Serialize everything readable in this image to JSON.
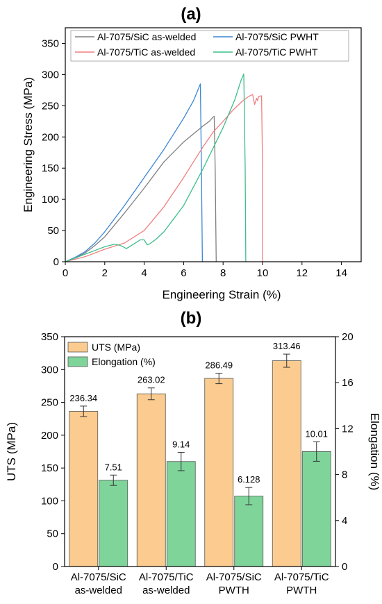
{
  "chart_data": [
    {
      "panel": "(a)",
      "type": "line",
      "xlabel": "Engineering Strain (%)",
      "ylabel": "Engineering Stress (MPa)",
      "xlim": [
        0,
        15
      ],
      "ylim": [
        0,
        375
      ],
      "xticks": [
        0,
        2,
        4,
        6,
        8,
        10,
        12,
        14
      ],
      "yticks": [
        0,
        50,
        100,
        150,
        200,
        250,
        300,
        350
      ],
      "legend_position": "top",
      "series": [
        {
          "name": "Al-7075/SiC as-welded",
          "color": "#7f7f7f",
          "x": [
            0,
            0.5,
            1,
            1.5,
            2,
            3,
            4,
            5,
            6,
            6.5,
            7,
            7.3,
            7.5,
            7.55,
            7.6,
            7.65
          ],
          "y": [
            0,
            6,
            14,
            26,
            40,
            78,
            118,
            160,
            192,
            205,
            218,
            225,
            232,
            233,
            150,
            0
          ]
        },
        {
          "name": "Al-7075/SiC PWHT",
          "color": "#3a86d4",
          "x": [
            0,
            0.5,
            1,
            1.5,
            2,
            3,
            4,
            5,
            6,
            6.5,
            6.85,
            6.9,
            6.95
          ],
          "y": [
            0,
            7,
            16,
            30,
            48,
            90,
            135,
            180,
            230,
            258,
            285,
            150,
            0
          ]
        },
        {
          "name": "Al-7075/TiC as-welded",
          "color": "#f07f7f",
          "x": [
            0,
            1,
            2,
            3,
            4,
            5,
            6,
            6.5,
            7,
            7.5,
            8,
            8.5,
            9,
            9.3,
            9.5,
            9.6,
            9.7,
            9.75,
            9.8,
            9.95,
            10.0,
            10.0
          ],
          "y": [
            0,
            8,
            20,
            30,
            50,
            88,
            135,
            160,
            185,
            208,
            225,
            243,
            258,
            265,
            268,
            252,
            262,
            258,
            265,
            266,
            150,
            0
          ]
        },
        {
          "name": "Al-7075/TiC PWHT",
          "color": "#3cbf8a",
          "x": [
            0,
            0.5,
            1,
            1.5,
            2,
            2.5,
            2.8,
            3.1,
            3.5,
            3.8,
            4.0,
            4.15,
            4.3,
            4.6,
            5,
            6,
            7,
            8,
            8.6,
            8.9,
            9.05,
            9.12,
            9.15
          ],
          "y": [
            0,
            6,
            12,
            18,
            24,
            28,
            26,
            21,
            29,
            35,
            35,
            27,
            29,
            36,
            48,
            90,
            150,
            215,
            260,
            290,
            301,
            150,
            0
          ]
        }
      ]
    },
    {
      "panel": "(b)",
      "type": "bar",
      "categories": [
        [
          "Al-7075/SiC",
          "as-welded"
        ],
        [
          "Al-7075/TiC",
          "as-welded"
        ],
        [
          "Al-7075/SiC",
          "PWTH"
        ],
        [
          "Al-7075/TiC",
          "PWTH"
        ]
      ],
      "ylabel": "UTS (MPa)",
      "y2label": "Elongation (%)",
      "ylim": [
        0,
        350
      ],
      "y2lim": [
        0,
        20
      ],
      "yticks": [
        0,
        50,
        100,
        150,
        200,
        250,
        300,
        350
      ],
      "y2ticks": [
        0,
        4,
        8,
        12,
        16,
        20
      ],
      "legend_position": "top-left",
      "series": [
        {
          "name": "UTS (MPa)",
          "axis": "left",
          "color": "#fbcb8f",
          "values": [
            236.34,
            263.02,
            286.49,
            313.46
          ],
          "labels": [
            "236.34",
            "263.02",
            "286.49",
            "313.46"
          ],
          "errors": [
            8,
            9,
            8,
            10
          ]
        },
        {
          "name": "Elongation (%)",
          "axis": "right",
          "color": "#7fd49a",
          "values": [
            7.51,
            9.14,
            6.128,
            10.01
          ],
          "labels": [
            "7.51",
            "9.14",
            "6.128",
            "10.01"
          ],
          "errors": [
            0.45,
            0.8,
            0.75,
            0.85
          ]
        }
      ]
    }
  ]
}
